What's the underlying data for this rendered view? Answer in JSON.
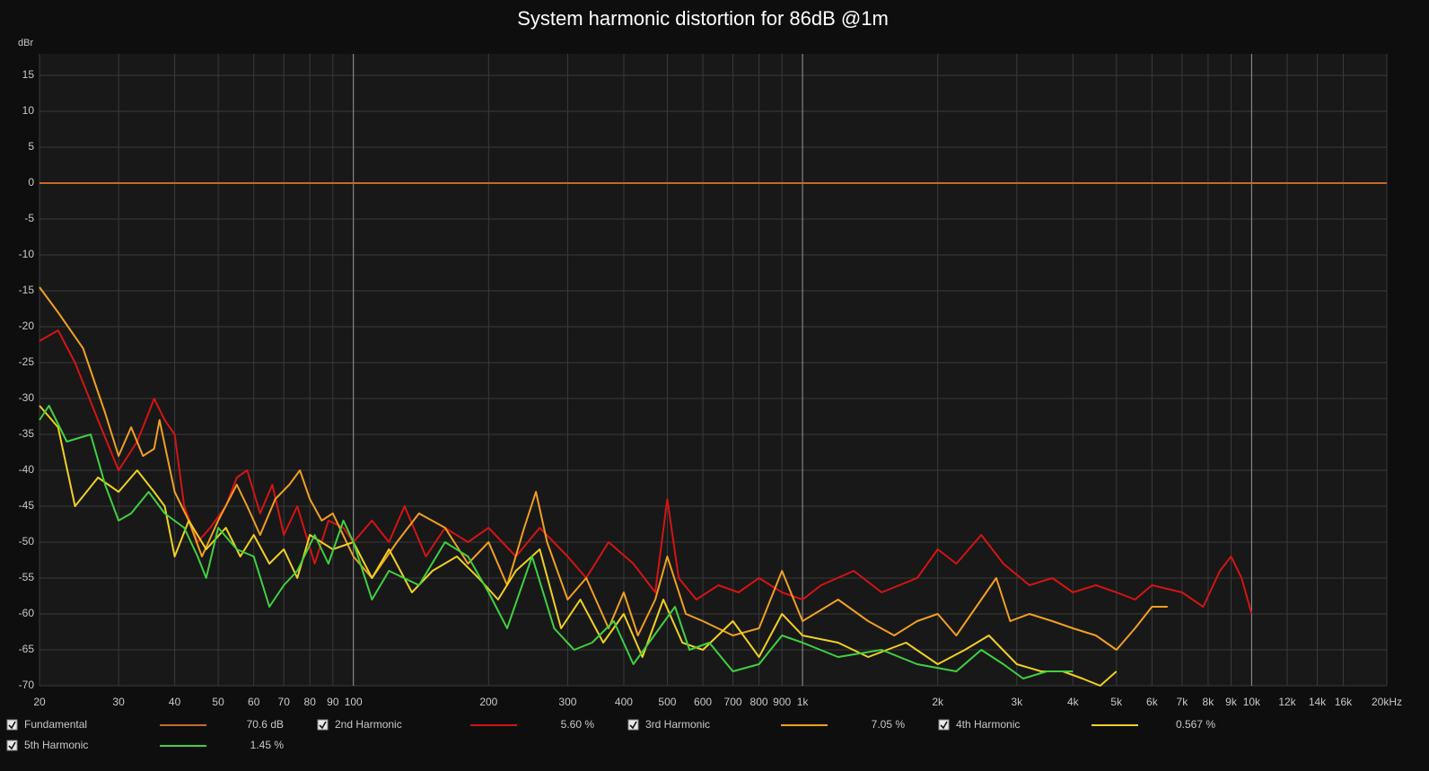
{
  "chart_data": {
    "type": "line",
    "title": "System harmonic distortion for 86dB @1m",
    "y_label": "dBr",
    "log_x": true,
    "grid": true,
    "xlim": [
      20,
      20000
    ],
    "ylim": [
      -70,
      18
    ],
    "xticks": [
      20,
      30,
      40,
      50,
      60,
      70,
      80,
      90,
      100,
      200,
      300,
      400,
      500,
      600,
      700,
      800,
      900,
      {
        "value": 1000,
        "label": "1k"
      },
      {
        "value": 2000,
        "label": "2k"
      },
      {
        "value": 3000,
        "label": "3k"
      },
      {
        "value": 4000,
        "label": "4k"
      },
      {
        "value": 5000,
        "label": "5k"
      },
      {
        "value": 6000,
        "label": "6k"
      },
      {
        "value": 7000,
        "label": "7k"
      },
      {
        "value": 8000,
        "label": "8k"
      },
      {
        "value": 9000,
        "label": "9k"
      },
      {
        "value": 10000,
        "label": "10k"
      },
      {
        "value": 12000,
        "label": "12k"
      },
      {
        "value": 14000,
        "label": "14k"
      },
      {
        "value": 16000,
        "label": "16k"
      },
      {
        "value": 20000,
        "label": "20kHz"
      }
    ],
    "yticks": [
      15,
      10,
      5,
      0,
      -5,
      -10,
      -15,
      -20,
      -25,
      -30,
      -35,
      -40,
      -45,
      -50,
      -55,
      -60,
      -65,
      -70
    ],
    "series": [
      {
        "name": "Fundamental",
        "color": "#c8682a",
        "legend_value": "70.6 dB",
        "x": [
          20,
          20000
        ],
        "values": [
          0,
          0
        ]
      },
      {
        "name": "2nd Harmonic",
        "color": "#d41414",
        "legend_value": "5.60 %",
        "x": [
          20,
          22,
          24,
          27,
          30,
          33,
          35,
          36,
          38,
          40,
          42,
          45,
          48,
          52,
          55,
          58,
          62,
          66,
          70,
          75,
          82,
          88,
          95,
          100,
          110,
          120,
          130,
          145,
          160,
          180,
          200,
          230,
          260,
          300,
          330,
          370,
          420,
          470,
          500,
          530,
          580,
          650,
          720,
          800,
          900,
          1000,
          1100,
          1300,
          1500,
          1800,
          2000,
          2200,
          2500,
          2800,
          3200,
          3600,
          4000,
          4500,
          5000,
          5500,
          6000,
          7000,
          7800,
          8500,
          9000,
          9500,
          10000
        ],
        "values": [
          -22,
          -20.5,
          -25,
          -33,
          -40,
          -36,
          -32,
          -30,
          -33,
          -35,
          -45,
          -50,
          -48,
          -45,
          -41,
          -40,
          -46,
          -42,
          -49,
          -45,
          -53,
          -47,
          -48,
          -50,
          -47,
          -50,
          -45,
          -52,
          -48,
          -50,
          -48,
          -52,
          -48,
          -52,
          -55,
          -50,
          -53,
          -57,
          -44,
          -55,
          -58,
          -56,
          -57,
          -55,
          -57,
          -58,
          -56,
          -54,
          -57,
          -55,
          -51,
          -53,
          -49,
          -53,
          -56,
          -55,
          -57,
          -56,
          -57,
          -58,
          -56,
          -57,
          -59,
          -54,
          -52,
          -55,
          -60
        ]
      },
      {
        "name": "3rd Harmonic",
        "color": "#f0a020",
        "legend_value": "7.05 %",
        "x": [
          20,
          22,
          25,
          28,
          30,
          32,
          34,
          36,
          37,
          40,
          43,
          46,
          50,
          55,
          58,
          62,
          67,
          72,
          76,
          80,
          85,
          90,
          100,
          110,
          125,
          140,
          160,
          180,
          200,
          220,
          240,
          255,
          270,
          300,
          330,
          370,
          400,
          430,
          470,
          500,
          550,
          600,
          700,
          800,
          900,
          1000,
          1200,
          1400,
          1600,
          1800,
          2000,
          2200,
          2500,
          2700,
          2900,
          3200,
          3600,
          4000,
          4500,
          5000,
          5500,
          6000,
          6500
        ],
        "values": [
          -14.5,
          -18,
          -23,
          -32,
          -38,
          -34,
          -38,
          -37,
          -33,
          -43,
          -47,
          -52,
          -47,
          -42,
          -45,
          -49,
          -44,
          -42,
          -40,
          -44,
          -47,
          -46,
          -52,
          -55,
          -50,
          -46,
          -48,
          -53,
          -50,
          -56,
          -48,
          -43,
          -50,
          -58,
          -55,
          -62,
          -57,
          -63,
          -58,
          -52,
          -60,
          -61,
          -63,
          -62,
          -54,
          -61,
          -58,
          -61,
          -63,
          -61,
          -60,
          -63,
          -58,
          -55,
          -61,
          -60,
          -61,
          -62,
          -63,
          -65,
          -62,
          -59,
          -59
        ]
      },
      {
        "name": "4th Harmonic",
        "color": "#f0d020",
        "legend_value": "0.567 %",
        "x": [
          20,
          22,
          24,
          27,
          30,
          33,
          36,
          38,
          40,
          43,
          47,
          52,
          56,
          60,
          65,
          70,
          75,
          80,
          90,
          100,
          110,
          120,
          135,
          150,
          170,
          190,
          210,
          230,
          260,
          290,
          320,
          360,
          400,
          440,
          490,
          540,
          600,
          700,
          800,
          900,
          1000,
          1200,
          1400,
          1700,
          2000,
          2300,
          2600,
          3000,
          3400,
          3800,
          4200,
          4600,
          5000
        ],
        "values": [
          -31,
          -34,
          -45,
          -41,
          -43,
          -40,
          -43,
          -45,
          -52,
          -47,
          -51,
          -48,
          -52,
          -49,
          -53,
          -51,
          -55,
          -49,
          -51,
          -50,
          -55,
          -51,
          -57,
          -54,
          -52,
          -55,
          -58,
          -54,
          -51,
          -62,
          -58,
          -64,
          -60,
          -66,
          -58,
          -64,
          -65,
          -61,
          -66,
          -60,
          -63,
          -64,
          -66,
          -64,
          -67,
          -65,
          -63,
          -67,
          -68,
          -68,
          -69,
          -70,
          -68
        ]
      },
      {
        "name": "5th Harmonic",
        "color": "#40d040",
        "legend_value": "1.45 %",
        "x": [
          20,
          21,
          23,
          26,
          28,
          30,
          32,
          35,
          38,
          42,
          45,
          47,
          50,
          55,
          60,
          65,
          70,
          75,
          82,
          88,
          95,
          100,
          110,
          120,
          140,
          160,
          180,
          200,
          220,
          250,
          280,
          310,
          340,
          380,
          420,
          480,
          520,
          560,
          620,
          700,
          800,
          900,
          1000,
          1200,
          1500,
          1800,
          2200,
          2500,
          2800,
          3100,
          3500,
          4000
        ],
        "values": [
          -33,
          -31,
          -36,
          -35,
          -42,
          -47,
          -46,
          -43,
          -46,
          -48,
          -52,
          -55,
          -48,
          -51,
          -52,
          -59,
          -56,
          -54,
          -49,
          -53,
          -47,
          -50,
          -58,
          -54,
          -56,
          -50,
          -52,
          -57,
          -62,
          -52,
          -62,
          -65,
          -64,
          -61,
          -67,
          -62,
          -59,
          -65,
          -64,
          -68,
          -67,
          -63,
          -64,
          -66,
          -65,
          -67,
          -68,
          -65,
          -67,
          -69,
          -68,
          -68
        ]
      }
    ]
  }
}
